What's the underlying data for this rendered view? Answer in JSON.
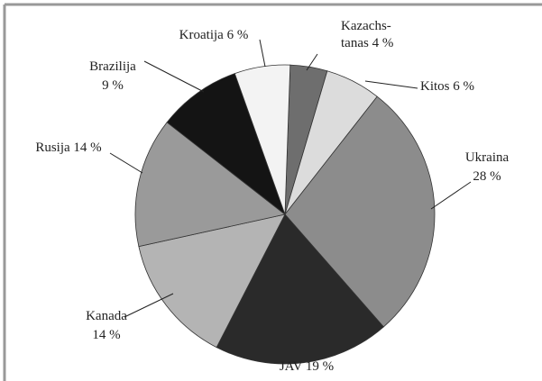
{
  "chart_data": {
    "type": "pie",
    "categories": [
      "Kazachs-tanas",
      "Kitos",
      "Ukraina",
      "JAV",
      "Kanada",
      "Rusija",
      "Brazilija",
      "Kroatija"
    ],
    "values": [
      4,
      6,
      28,
      19,
      14,
      14,
      9,
      6
    ],
    "value_labels": [
      "4 %",
      "6 %",
      "28 %",
      "19 %",
      "14 %",
      "14 %",
      "9 %",
      "6 %"
    ],
    "colors": [
      "#6e6e6e",
      "#dcdcdc",
      "#8c8c8c",
      "#2a2a2a",
      "#b4b4b4",
      "#9a9a9a",
      "#141414",
      "#f3f3f3"
    ]
  }
}
